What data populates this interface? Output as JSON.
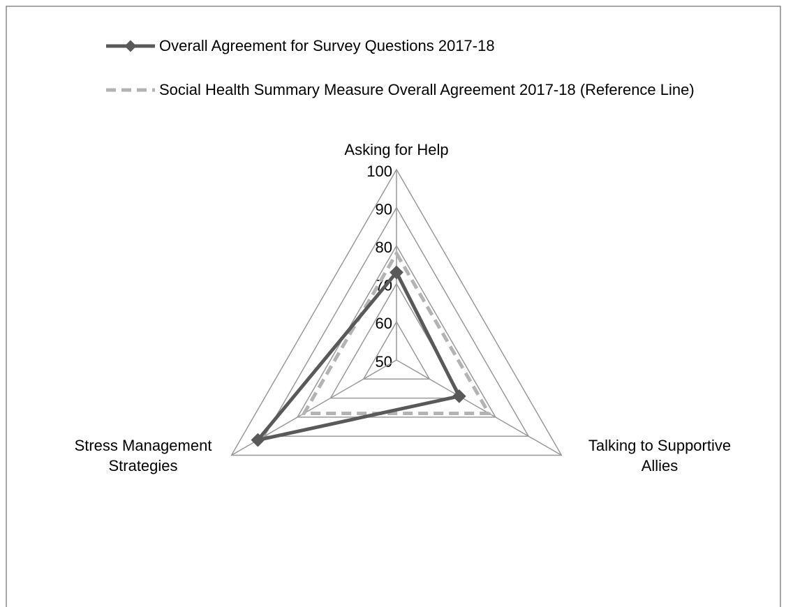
{
  "chart_data": {
    "type": "radar",
    "categories": [
      "Asking for Help",
      [
        "Talking to Supportive",
        "Allies"
      ],
      [
        "Stress Management",
        "Strategies"
      ]
    ],
    "series": [
      {
        "name": "Overall Agreement for Survey Questions 2017-18",
        "color": "#595959",
        "values": [
          73,
          69,
          92
        ]
      },
      {
        "name": "Social Health Summary Measure Overall Agreement 2017-18 (Reference Line)",
        "color": "#b3b3b3",
        "dashed": true,
        "values": [
          78,
          78,
          78
        ]
      }
    ],
    "ylim": [
      50,
      100
    ],
    "yticks": [
      50,
      60,
      70,
      80,
      90,
      100
    ],
    "grid": true
  }
}
